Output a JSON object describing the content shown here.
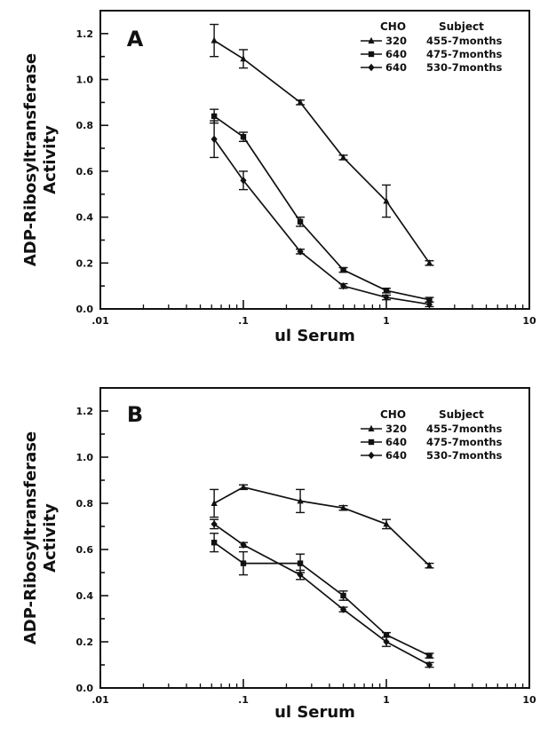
{
  "chart_data": [
    {
      "type": "line",
      "panel": "A",
      "xlabel": "ul Serum",
      "ylabel": [
        "ADP-Ribosyltransferase",
        "Activity"
      ],
      "x_scale": "log",
      "xlim": [
        0.01,
        10
      ],
      "ylim": [
        0,
        1.3
      ],
      "x_ticks": [
        ".01",
        ".1",
        "1",
        "10"
      ],
      "y_ticks": [
        "0.0",
        "0.2",
        "0.4",
        "0.6",
        "0.8",
        "1.0",
        "1.2"
      ],
      "legend": {
        "position": "top-right",
        "headers": [
          "CHO",
          "Subject"
        ],
        "entries": [
          {
            "cho": "320",
            "subject": "455-7months"
          },
          {
            "cho": "640",
            "subject": "475-7months"
          },
          {
            "cho": "640",
            "subject": "530-7months"
          }
        ]
      },
      "series": [
        {
          "marker": "triangle",
          "x": [
            0.0625,
            0.1,
            0.25,
            0.5,
            1,
            2
          ],
          "y": [
            1.17,
            1.09,
            0.9,
            0.66,
            0.47,
            0.2
          ],
          "err": [
            0.07,
            0.04,
            0.01,
            0.01,
            0.07,
            0.01
          ]
        },
        {
          "marker": "square",
          "x": [
            0.0625,
            0.1,
            0.25,
            0.5,
            1,
            2
          ],
          "y": [
            0.84,
            0.75,
            0.38,
            0.17,
            0.08,
            0.04
          ],
          "err": [
            0.03,
            0.02,
            0.02,
            0.01,
            0.01,
            0.01
          ]
        },
        {
          "marker": "diamond",
          "x": [
            0.0625,
            0.1,
            0.25,
            0.5,
            1,
            2
          ],
          "y": [
            0.74,
            0.56,
            0.25,
            0.1,
            0.05,
            0.02
          ],
          "err": [
            0.08,
            0.04,
            0.01,
            0.01,
            0.01,
            0.01
          ]
        }
      ]
    },
    {
      "type": "line",
      "panel": "B",
      "xlabel": "ul Serum",
      "ylabel": [
        "ADP-Ribosyltransferase",
        "Activity"
      ],
      "x_scale": "log",
      "xlim": [
        0.01,
        10
      ],
      "ylim": [
        0,
        1.3
      ],
      "x_ticks": [
        ".01",
        ".1",
        "1",
        "10"
      ],
      "y_ticks": [
        "0.0",
        "0.2",
        "0.4",
        "0.6",
        "0.8",
        "1.0",
        "1.2"
      ],
      "legend": {
        "position": "top-right",
        "headers": [
          "CHO",
          "Subject"
        ],
        "entries": [
          {
            "cho": "320",
            "subject": "455-7months"
          },
          {
            "cho": "640",
            "subject": "475-7months"
          },
          {
            "cho": "640",
            "subject": "530-7months"
          }
        ]
      },
      "series": [
        {
          "marker": "triangle",
          "x": [
            0.0625,
            0.1,
            0.25,
            0.5,
            1,
            2
          ],
          "y": [
            0.8,
            0.87,
            0.81,
            0.78,
            0.71,
            0.53
          ],
          "err": [
            0.06,
            0.01,
            0.05,
            0.01,
            0.02,
            0.01
          ]
        },
        {
          "marker": "square",
          "x": [
            0.0625,
            0.1,
            0.25,
            0.5,
            1,
            2
          ],
          "y": [
            0.63,
            0.54,
            0.54,
            0.4,
            0.23,
            0.14
          ],
          "err": [
            0.04,
            0.05,
            0.04,
            0.02,
            0.01,
            0.01
          ]
        },
        {
          "marker": "diamond",
          "x": [
            0.0625,
            0.1,
            0.25,
            0.5,
            1,
            2
          ],
          "y": [
            0.71,
            0.62,
            0.49,
            0.34,
            0.2,
            0.1
          ],
          "err": [
            0.02,
            0.01,
            0.02,
            0.01,
            0.02,
            0.01
          ]
        }
      ]
    }
  ]
}
